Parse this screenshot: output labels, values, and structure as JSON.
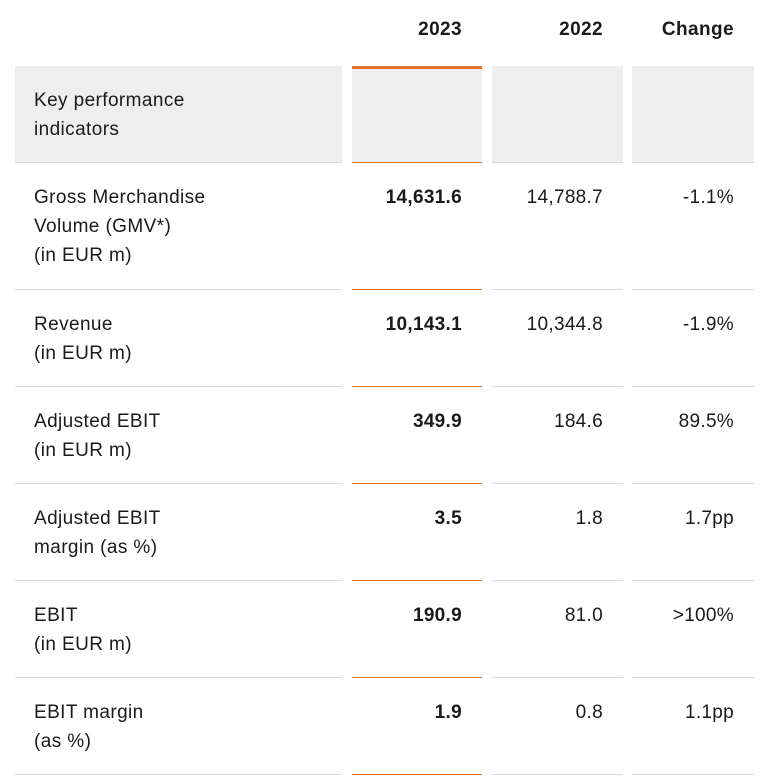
{
  "header": {
    "col_2023": "2023",
    "col_2022": "2022",
    "col_change": "Change"
  },
  "section_title": "Key performance indicators",
  "accent_color": "#e8702a",
  "rows": [
    {
      "label": "Gross Merchandise\nVolume (GMV*)\n(in EUR m)",
      "v2023": "14,631.6",
      "v2022": "14,788.7",
      "change": "-1.1%"
    },
    {
      "label": "Revenue\n(in EUR m)",
      "v2023": "10,143.1",
      "v2022": "10,344.8",
      "change": "-1.9%"
    },
    {
      "label": "Adjusted EBIT\n(in EUR m)",
      "v2023": "349.9",
      "v2022": "184.6",
      "change": "89.5%"
    },
    {
      "label": "Adjusted EBIT\nmargin (as %)",
      "v2023": "3.5",
      "v2022": "1.8",
      "change": "1.7pp"
    },
    {
      "label": "EBIT\n(in EUR m)",
      "v2023": "190.9",
      "v2022": "81.0",
      "change": ">100%"
    },
    {
      "label": "EBIT margin\n(as %)",
      "v2023": "1.9",
      "v2022": "0.8",
      "change": "1.1pp"
    }
  ]
}
